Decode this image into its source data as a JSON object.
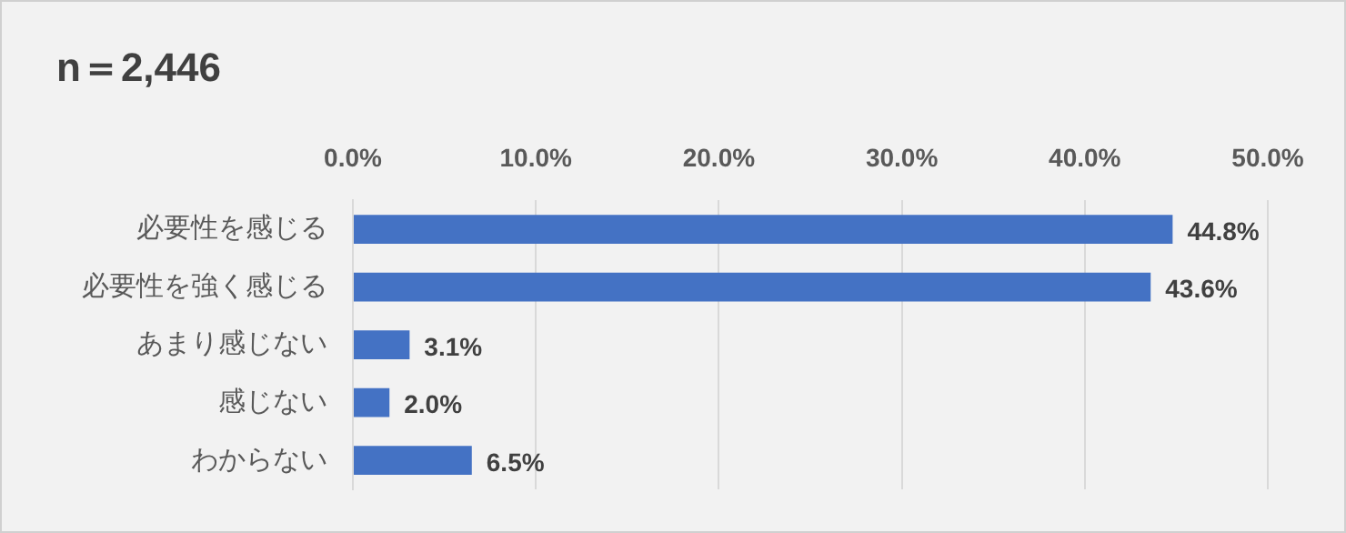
{
  "chart_data": {
    "type": "bar",
    "orientation": "horizontal",
    "title": "n＝2,446",
    "categories": [
      "必要性を感じる",
      "必要性を強く感じる",
      "あまり感じない",
      "感じない",
      "わからない"
    ],
    "values": [
      44.8,
      43.6,
      3.1,
      2.0,
      6.5
    ],
    "value_labels": [
      "44.8%",
      "43.6%",
      "3.1%",
      "2.0%",
      "6.5%"
    ],
    "color": "#4472c4",
    "xlim": [
      0,
      50
    ],
    "xticks": [
      {
        "value": 0,
        "label": "0.0%"
      },
      {
        "value": 10,
        "label": "10.0%"
      },
      {
        "value": 20,
        "label": "20.0%"
      },
      {
        "value": 30,
        "label": "30.0%"
      },
      {
        "value": 40,
        "label": "40.0%"
      },
      {
        "value": 50,
        "label": "50.0%"
      }
    ],
    "grid": "x",
    "legend": false
  }
}
